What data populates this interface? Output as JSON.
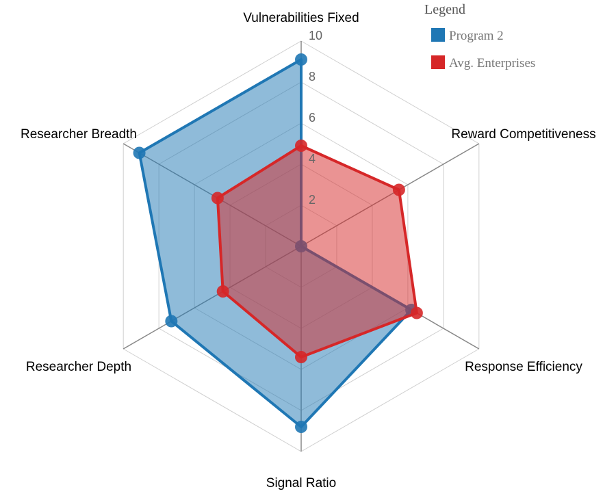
{
  "chart_data": {
    "type": "radar",
    "axes": [
      "Vulnerabilities Fixed",
      "Reward Competitiveness",
      "Response Efficiency",
      "Signal Ratio",
      "Researcher Depth",
      "Researcher Breadth"
    ],
    "range": [
      0,
      10
    ],
    "ticks": [
      "2",
      "4",
      "6",
      "8",
      "10"
    ],
    "tick_values": [
      2,
      4,
      6,
      8,
      10
    ],
    "grid": true,
    "legend": {
      "title": "Legend",
      "position": "top-right"
    },
    "series": [
      {
        "name": "Program 2",
        "color": "#1f77b4",
        "values": [
          9.1,
          0,
          6.2,
          8.8,
          7.3,
          9.1
        ]
      },
      {
        "name": "Avg. Enterprises",
        "color": "#d62728",
        "values": [
          4.9,
          5.5,
          6.5,
          5.4,
          4.4,
          4.7
        ]
      }
    ]
  }
}
